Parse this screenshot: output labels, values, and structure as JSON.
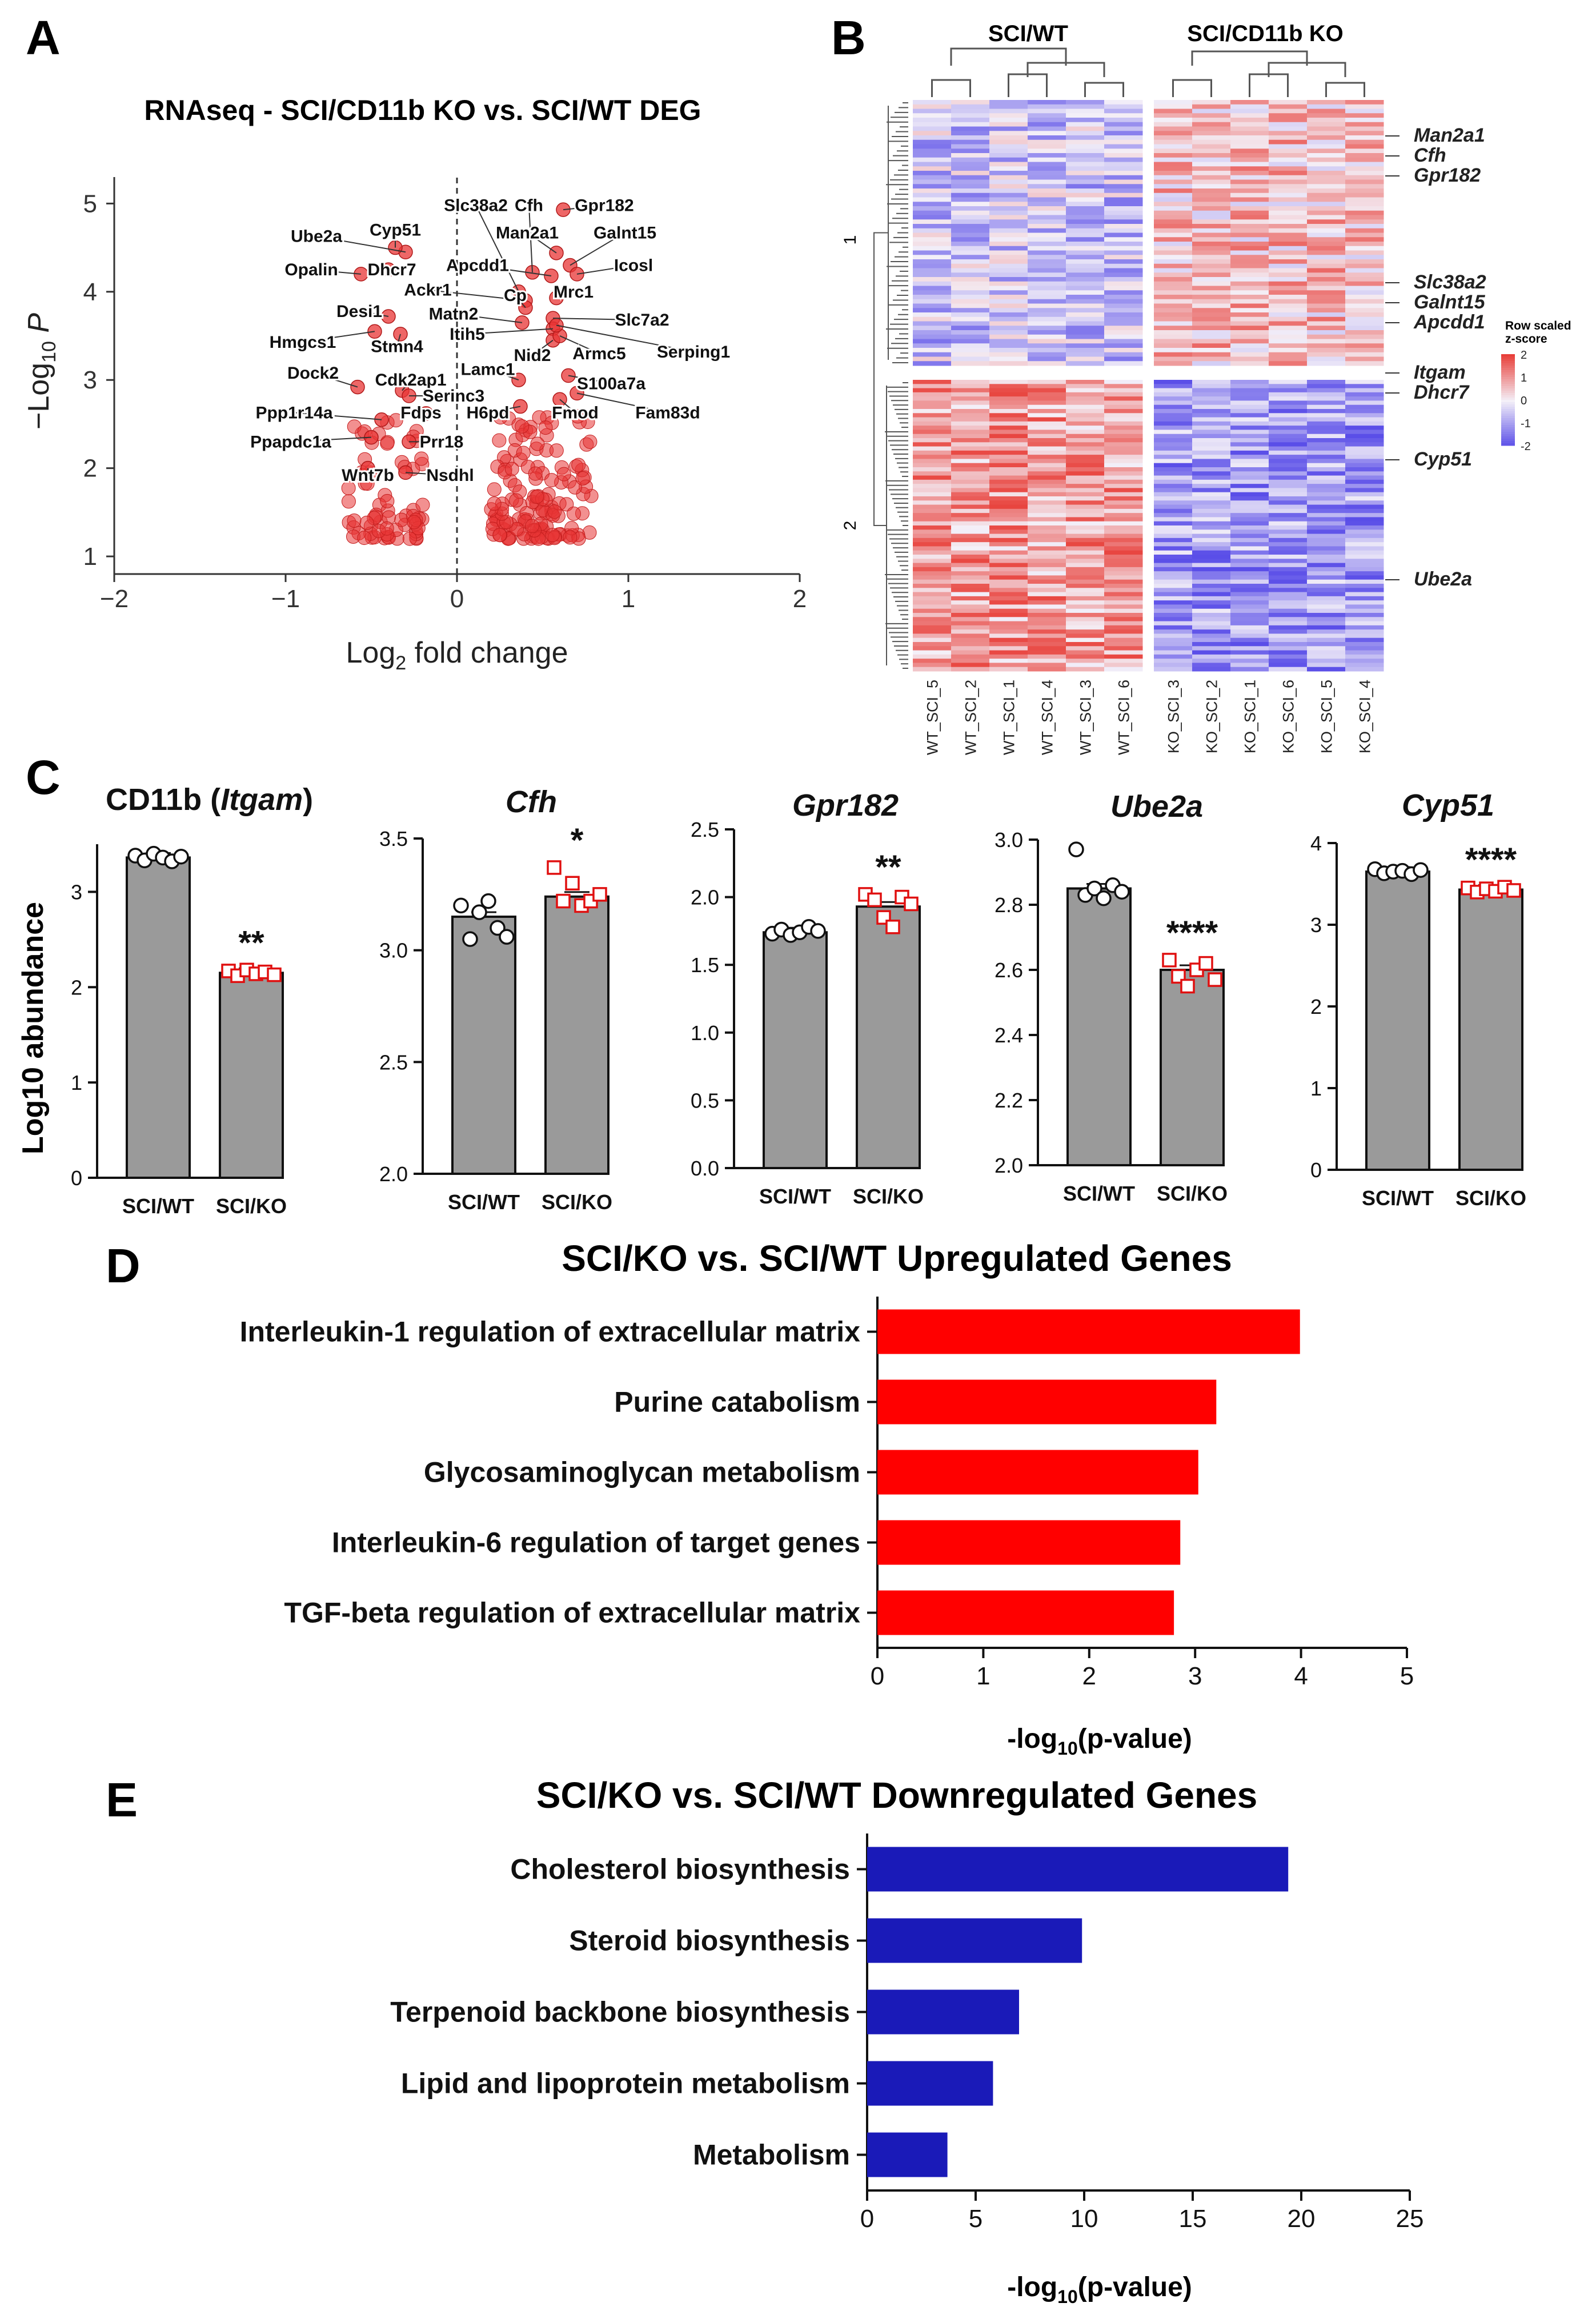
{
  "panel_labels": {
    "a": "A",
    "b": "B",
    "c": "C",
    "d": "D",
    "e": "E"
  },
  "chart_data": [
    {
      "id": "A",
      "type": "scatter",
      "title": "RNAseq - SCI/CD11b KO vs. SCI/WT DEG",
      "xlabel": "Log2 fold change",
      "ylabel": "-Log10 P",
      "xlim": [
        -2,
        2
      ],
      "ylim": [
        0.8,
        5.3
      ],
      "xticks": [
        -2,
        -1,
        0,
        1,
        2
      ],
      "yticks": [
        1,
        2,
        3,
        4,
        5
      ],
      "labeled_points": [
        {
          "gene": "Slc38a2",
          "x": 0.36,
          "y": 4.0,
          "lx": 0.11,
          "ly": 4.98
        },
        {
          "gene": "Cfh",
          "x": 0.44,
          "y": 4.22,
          "lx": 0.42,
          "ly": 4.98
        },
        {
          "gene": "Gpr182",
          "x": 0.62,
          "y": 4.93,
          "lx": 0.86,
          "ly": 4.98
        },
        {
          "gene": "Man2a1",
          "x": 0.58,
          "y": 4.44,
          "lx": 0.41,
          "ly": 4.67
        },
        {
          "gene": "Galnt15",
          "x": 0.66,
          "y": 4.3,
          "lx": 0.98,
          "ly": 4.67
        },
        {
          "gene": "Apcdd1",
          "x": 0.55,
          "y": 4.18,
          "lx": 0.12,
          "ly": 4.3
        },
        {
          "gene": "Icosl",
          "x": 0.7,
          "y": 4.2,
          "lx": 1.03,
          "ly": 4.3
        },
        {
          "gene": "Ube2a",
          "x": -0.3,
          "y": 4.45,
          "lx": -0.82,
          "ly": 4.63
        },
        {
          "gene": "Cyp51",
          "x": -0.36,
          "y": 4.5,
          "lx": -0.36,
          "ly": 4.7
        },
        {
          "gene": "Opalin",
          "x": -0.56,
          "y": 4.2,
          "lx": -0.85,
          "ly": 4.25
        },
        {
          "gene": "Dhcr7",
          "x": -0.4,
          "y": 4.25,
          "lx": -0.38,
          "ly": 4.25
        },
        {
          "gene": "Ackr1",
          "x": 0.4,
          "y": 3.9,
          "lx": -0.17,
          "ly": 4.02
        },
        {
          "gene": "Cp",
          "x": 0.4,
          "y": 3.82,
          "lx": 0.34,
          "ly": 3.96
        },
        {
          "gene": "Mrc1",
          "x": 0.58,
          "y": 3.93,
          "lx": 0.68,
          "ly": 4.0
        },
        {
          "gene": "Desi1",
          "x": -0.4,
          "y": 3.72,
          "lx": -0.57,
          "ly": 3.78
        },
        {
          "gene": "Matn2",
          "x": 0.38,
          "y": 3.65,
          "lx": -0.02,
          "ly": 3.75
        },
        {
          "gene": "Slc7a2",
          "x": 0.56,
          "y": 3.7,
          "lx": 1.08,
          "ly": 3.68
        },
        {
          "gene": "Itih5",
          "x": 0.56,
          "y": 3.58,
          "lx": 0.06,
          "ly": 3.52
        },
        {
          "gene": "Hmgcs1",
          "x": -0.48,
          "y": 3.55,
          "lx": -0.9,
          "ly": 3.43
        },
        {
          "gene": "Stmn4",
          "x": -0.33,
          "y": 3.52,
          "lx": -0.35,
          "ly": 3.38
        },
        {
          "gene": "Nid2",
          "x": 0.56,
          "y": 3.45,
          "lx": 0.44,
          "ly": 3.28
        },
        {
          "gene": "Armc5",
          "x": 0.6,
          "y": 3.5,
          "lx": 0.83,
          "ly": 3.3
        },
        {
          "gene": "Serping1",
          "x": 0.58,
          "y": 3.62,
          "lx": 1.38,
          "ly": 3.32
        },
        {
          "gene": "Dock2",
          "x": -0.58,
          "y": 2.92,
          "lx": -0.84,
          "ly": 3.08
        },
        {
          "gene": "Cdk2ap1",
          "x": -0.32,
          "y": 2.88,
          "lx": -0.27,
          "ly": 3.0
        },
        {
          "gene": "Lamc1",
          "x": 0.36,
          "y": 3.0,
          "lx": 0.18,
          "ly": 3.12
        },
        {
          "gene": "S100a7a",
          "x": 0.65,
          "y": 3.05,
          "lx": 0.9,
          "ly": 2.96
        },
        {
          "gene": "Serinc3",
          "x": -0.28,
          "y": 2.82,
          "lx": -0.02,
          "ly": 2.82
        },
        {
          "gene": "Ppp1r14a",
          "x": -0.44,
          "y": 2.55,
          "lx": -0.95,
          "ly": 2.63
        },
        {
          "gene": "Fdps",
          "x": -0.18,
          "y": 2.62,
          "lx": -0.21,
          "ly": 2.63
        },
        {
          "gene": "H6pd",
          "x": 0.37,
          "y": 2.7,
          "lx": 0.18,
          "ly": 2.63
        },
        {
          "gene": "Fmod",
          "x": 0.6,
          "y": 2.78,
          "lx": 0.69,
          "ly": 2.63
        },
        {
          "gene": "Fam83d",
          "x": 0.7,
          "y": 2.85,
          "lx": 1.23,
          "ly": 2.63
        },
        {
          "gene": "Ppapdc1a",
          "x": -0.5,
          "y": 2.35,
          "lx": -0.97,
          "ly": 2.3
        },
        {
          "gene": "Prr18",
          "x": -0.28,
          "y": 2.3,
          "lx": -0.09,
          "ly": 2.3
        },
        {
          "gene": "Wnt7b",
          "x": -0.52,
          "y": 2.0,
          "lx": -0.52,
          "ly": 1.92
        },
        {
          "gene": "Nsdhl",
          "x": -0.3,
          "y": 1.95,
          "lx": -0.04,
          "ly": 1.92
        }
      ]
    },
    {
      "id": "B",
      "type": "heatmap",
      "group_labels": [
        "SCI/WT",
        "SCI/CD11b KO"
      ],
      "columns": [
        "WT_SCI_5",
        "WT_SCI_2",
        "WT_SCI_1",
        "WT_SCI_4",
        "WT_SCI_3",
        "WT_SCI_6",
        "KO_SCI_3",
        "KO_SCI_2",
        "KO_SCI_1",
        "KO_SCI_6",
        "KO_SCI_5",
        "KO_SCI_4"
      ],
      "row_clusters": [
        "1",
        "2"
      ],
      "gene_labels": [
        "Man2a1",
        "Cfh",
        "Gpr182",
        "Slc38a2",
        "Galnt15",
        "Apcdd1",
        "Itgam",
        "Dhcr7",
        "Cyp51",
        "Ube2a"
      ],
      "legend_title": "Row scaled z-score",
      "legend_ticks": [
        "2",
        "1",
        "0",
        "-1",
        "-2"
      ],
      "colors": {
        "high": "#e8403a",
        "mid": "#f4f0f8",
        "low": "#5a4ee8"
      }
    },
    {
      "id": "C",
      "type": "bar",
      "ylabel": "Log10 abundance",
      "categories": [
        "SCI/WT",
        "SCI/KO"
      ],
      "subplots": [
        {
          "gene": "CD11b (",
          "gene_italic": "Itgam",
          "gene_suffix": ")",
          "ylim": [
            0,
            3.5
          ],
          "yticks": [
            "0",
            "1",
            "2",
            "3"
          ],
          "values": [
            3.36,
            2.15
          ],
          "sig": "**",
          "wt_points": [
            3.38,
            3.33,
            3.4,
            3.36,
            3.32,
            3.37
          ],
          "ko_points": [
            2.17,
            2.12,
            2.18,
            2.14,
            2.16,
            2.13
          ]
        },
        {
          "gene": "",
          "gene_italic": "Cfh",
          "gene_suffix": "",
          "ylim": [
            2.0,
            3.5
          ],
          "yticks": [
            "2.0",
            "2.5",
            "3.0",
            "3.5"
          ],
          "values": [
            3.15,
            3.24
          ],
          "sig": "*",
          "wt_points": [
            3.2,
            3.05,
            3.17,
            3.22,
            3.1,
            3.06
          ],
          "ko_points": [
            3.37,
            3.22,
            3.3,
            3.2,
            3.22,
            3.25
          ]
        },
        {
          "gene": "",
          "gene_italic": "Gpr182",
          "gene_suffix": "",
          "ylim": [
            0,
            2.5
          ],
          "yticks": [
            "0.0",
            "0.5",
            "1.0",
            "1.5",
            "2.0",
            "2.5"
          ],
          "values": [
            1.74,
            1.93
          ],
          "sig": "**",
          "wt_points": [
            1.73,
            1.76,
            1.72,
            1.74,
            1.78,
            1.75
          ],
          "ko_points": [
            2.02,
            1.98,
            1.85,
            1.78,
            2.0,
            1.95
          ]
        },
        {
          "gene": "",
          "gene_italic": "Ube2a",
          "gene_suffix": "",
          "ylim": [
            2.0,
            3.0
          ],
          "yticks": [
            "2.0",
            "2.2",
            "2.4",
            "2.6",
            "2.8",
            "3.0"
          ],
          "values": [
            2.85,
            2.6
          ],
          "sig": "****",
          "wt_points": [
            2.97,
            2.83,
            2.85,
            2.82,
            2.86,
            2.84
          ],
          "ko_points": [
            2.63,
            2.58,
            2.55,
            2.6,
            2.62,
            2.57
          ]
        },
        {
          "gene": "",
          "gene_italic": "Cyp51",
          "gene_suffix": "",
          "ylim": [
            0,
            4
          ],
          "yticks": [
            "0",
            "1",
            "2",
            "3",
            "4"
          ],
          "values": [
            3.65,
            3.43
          ],
          "sig": "****",
          "wt_points": [
            3.68,
            3.63,
            3.65,
            3.66,
            3.62,
            3.67
          ],
          "ko_points": [
            3.45,
            3.4,
            3.44,
            3.41,
            3.46,
            3.42
          ]
        }
      ]
    },
    {
      "id": "D",
      "type": "bar",
      "orientation": "horizontal",
      "title": "SCI/KO vs. SCI/WT Upregulated Genes",
      "xlabel": "-log10(p-value)",
      "xlim": [
        0,
        5
      ],
      "xticks": [
        "0",
        "1",
        "2",
        "3",
        "4",
        "5"
      ],
      "categories": [
        "Interleukin-1 regulation of extracellular matrix",
        "Purine catabolism",
        "Glycosaminoglycan metabolism",
        "Interleukin-6 regulation of target genes",
        "TGF-beta regulation of extracellular matrix"
      ],
      "values": [
        3.99,
        3.2,
        3.03,
        2.86,
        2.8
      ],
      "color": "#ff0000"
    },
    {
      "id": "E",
      "type": "bar",
      "orientation": "horizontal",
      "title": "SCI/KO vs. SCI/WT Downregulated Genes",
      "xlabel": "-log10(p-value)",
      "xlim": [
        0,
        25
      ],
      "xticks": [
        "0",
        "5",
        "10",
        "15",
        "20",
        "25"
      ],
      "categories": [
        "Cholesterol biosynthesis",
        "Steroid biosynthesis",
        "Terpenoid backbone biosynthesis",
        "Lipid and lipoprotein metabolism",
        "Metabolism"
      ],
      "values": [
        19.4,
        9.9,
        7.0,
        5.8,
        3.7
      ],
      "color": "#1a1ab8"
    }
  ]
}
